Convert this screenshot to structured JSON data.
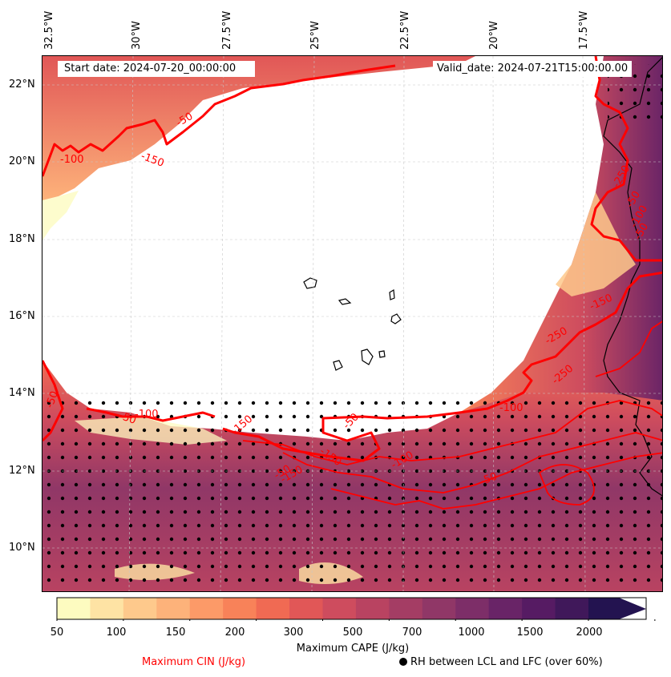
{
  "map": {
    "start_label": "Start date: 2024-07-20_00:00:00",
    "valid_label": "Valid_date: 2024-07-21T15:00:00.00",
    "longitude_labels": [
      "32.5°W",
      "30°W",
      "27.5°W",
      "25°W",
      "22.5°W",
      "20°W",
      "17.5°W"
    ],
    "latitude_labels": [
      "22°N",
      "20°N",
      "18°N",
      "16°N",
      "14°N",
      "12°N",
      "10°N"
    ],
    "cin_contour_labels": [
      "-50",
      "-100",
      "-150",
      "-250",
      "-50",
      "-100",
      "-50",
      "-150",
      "-100",
      "-50",
      "-50",
      "-100",
      "-50",
      "-150",
      "-250",
      "-150",
      "-250",
      "-50",
      "-150",
      "-100",
      "-50"
    ]
  },
  "colorbar": {
    "ticks": [
      "50",
      "100",
      "150",
      "200",
      "300",
      "500",
      "700",
      "1000",
      "1500",
      "2000"
    ],
    "colors": [
      "#fdfbc0",
      "#fee3a4",
      "#fec98c",
      "#fdb27a",
      "#fc9a68",
      "#f88259",
      "#f06a53",
      "#e15757",
      "#ce4c5e",
      "#b94361",
      "#a43d64",
      "#903767",
      "#7d2e68",
      "#692467",
      "#561b63",
      "#40185a",
      "#231350"
    ],
    "title": "Maximum CAPE (J/kg)"
  },
  "legend": {
    "cin_label": "Maximum CIN (J/kg)",
    "rh_label": "RH between LCL and LFC (over 60%)",
    "cin_color": "#ff0000"
  }
}
